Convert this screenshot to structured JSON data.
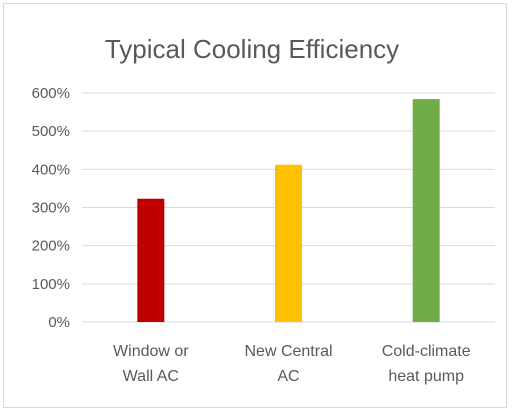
{
  "chart_data": {
    "type": "bar",
    "title": "Typical Cooling Efficiency",
    "categories": [
      [
        "Window or",
        "Wall AC"
      ],
      [
        "New Central",
        "AC"
      ],
      [
        "Cold-climate",
        "heat pump"
      ]
    ],
    "values": [
      323,
      412,
      584
    ],
    "colors": [
      "#c00000",
      "#ffc000",
      "#70ad47"
    ],
    "ylim": [
      0,
      600
    ],
    "yticks": [
      0,
      100,
      200,
      300,
      400,
      500,
      600
    ],
    "ytick_labels": [
      "0%",
      "100%",
      "200%",
      "300%",
      "400%",
      "500%",
      "600%"
    ],
    "xlabel": "",
    "ylabel": "",
    "grid": true,
    "gridline_color": "#d9d9d9",
    "legend": "none"
  }
}
